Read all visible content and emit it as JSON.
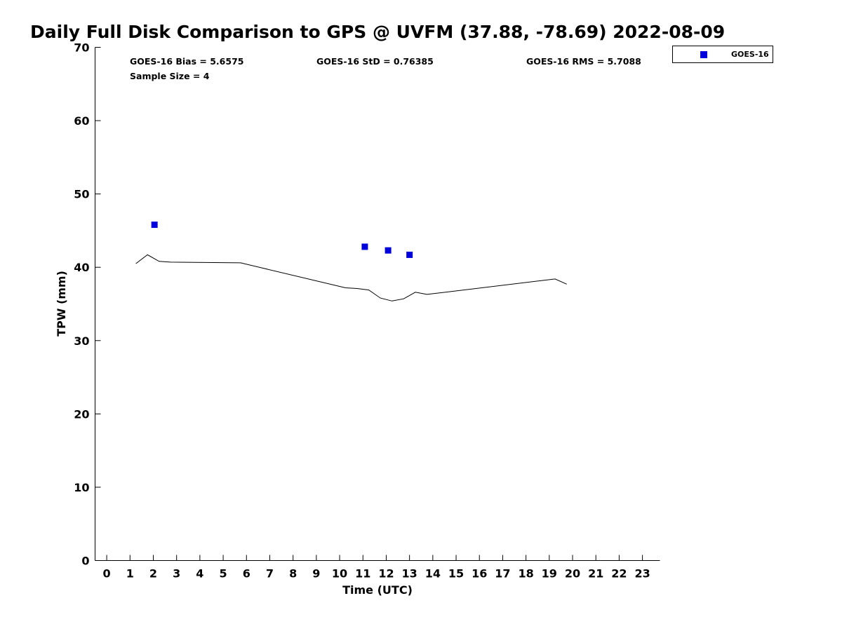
{
  "chart_data": {
    "type": "scatter",
    "title": "Daily Full Disk Comparison to GPS @ UVFM (37.88, -78.69) 2022-08-09",
    "xlabel": "Time (UTC)",
    "ylabel": "TPW (mm)",
    "xlim": [
      -0.5,
      23.75
    ],
    "ylim": [
      0,
      70
    ],
    "x_ticks": [
      0,
      1,
      2,
      3,
      4,
      5,
      6,
      7,
      8,
      9,
      10,
      11,
      12,
      13,
      14,
      15,
      16,
      17,
      18,
      19,
      20,
      21,
      22,
      23
    ],
    "y_ticks": [
      0,
      10,
      20,
      30,
      40,
      50,
      60,
      70
    ],
    "grid": false,
    "legend_position": "top-right, outside plot",
    "stats": {
      "bias": "GOES-16 Bias = 5.6575",
      "std": "GOES-16 StD = 0.76385",
      "rms": "GOES-16 RMS = 5.7088",
      "sample": "Sample Size = 4"
    },
    "series": [
      {
        "name": "GOES-16",
        "type": "scatter",
        "marker": "square",
        "color": "#0000dd",
        "points": [
          {
            "x": 2.05,
            "y": 45.8
          },
          {
            "x": 11.08,
            "y": 42.8
          },
          {
            "x": 12.08,
            "y": 42.3
          },
          {
            "x": 13.0,
            "y": 41.7
          }
        ]
      },
      {
        "type": "line",
        "color": "#000000",
        "points": [
          {
            "x": 1.25,
            "y": 40.5
          },
          {
            "x": 1.75,
            "y": 41.7
          },
          {
            "x": 2.25,
            "y": 40.8
          },
          {
            "x": 2.75,
            "y": 40.7
          },
          {
            "x": 5.75,
            "y": 40.6
          },
          {
            "x": 10.25,
            "y": 37.2
          },
          {
            "x": 10.75,
            "y": 37.1
          },
          {
            "x": 11.25,
            "y": 36.9
          },
          {
            "x": 11.75,
            "y": 35.8
          },
          {
            "x": 12.25,
            "y": 35.4
          },
          {
            "x": 12.75,
            "y": 35.7
          },
          {
            "x": 13.25,
            "y": 36.6
          },
          {
            "x": 13.75,
            "y": 36.3
          },
          {
            "x": 19.25,
            "y": 38.4
          },
          {
            "x": 19.75,
            "y": 37.7
          }
        ]
      }
    ]
  }
}
